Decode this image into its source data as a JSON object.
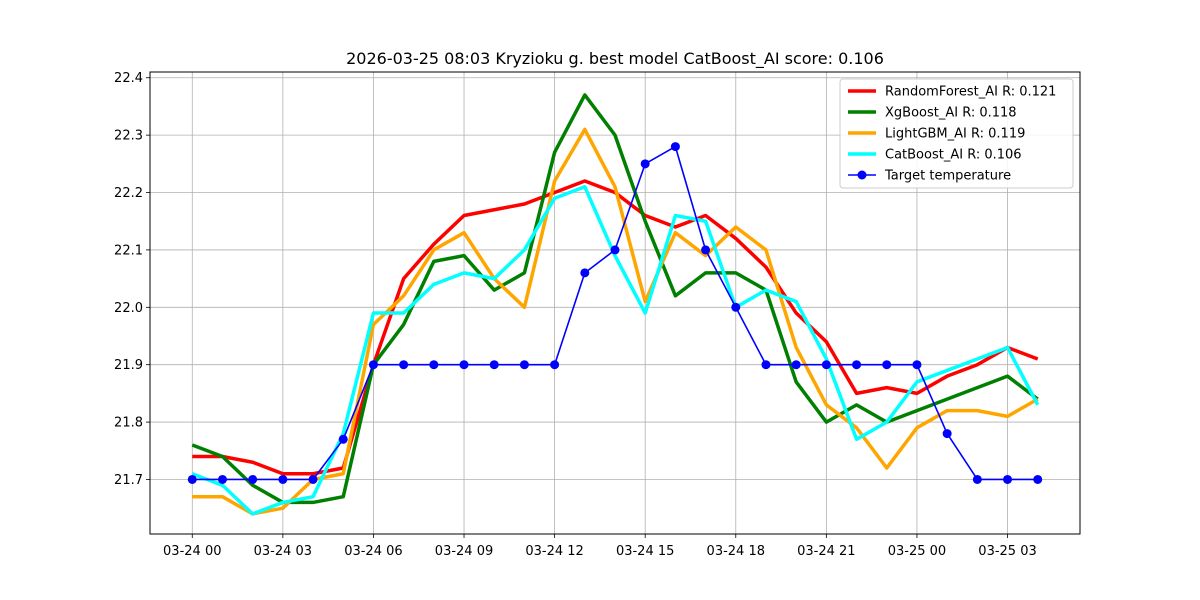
{
  "chart_data": {
    "type": "line",
    "title": "2026-03-25 08:03 Kryzioku g. best model CatBoost_AI score: 0.106",
    "xlabel": "",
    "ylabel": "",
    "x_hours": [
      0,
      1,
      2,
      3,
      4,
      5,
      6,
      7,
      8,
      9,
      10,
      11,
      12,
      13,
      14,
      15,
      16,
      17,
      18,
      19,
      20,
      21,
      22,
      23,
      24,
      25,
      26,
      27,
      28
    ],
    "x_ticks": [
      {
        "hour": 0,
        "label": "03-24 00"
      },
      {
        "hour": 3,
        "label": "03-24 03"
      },
      {
        "hour": 6,
        "label": "03-24 06"
      },
      {
        "hour": 9,
        "label": "03-24 09"
      },
      {
        "hour": 12,
        "label": "03-24 12"
      },
      {
        "hour": 15,
        "label": "03-24 15"
      },
      {
        "hour": 18,
        "label": "03-24 18"
      },
      {
        "hour": 21,
        "label": "03-24 21"
      },
      {
        "hour": 24,
        "label": "03-25 00"
      },
      {
        "hour": 27,
        "label": "03-25 03"
      }
    ],
    "xlim": [
      -1.4,
      29.4
    ],
    "ylim": [
      21.605,
      22.41
    ],
    "y_ticks": [
      "21.7",
      "21.8",
      "21.9",
      "22.0",
      "22.1",
      "22.2",
      "22.3",
      "22.4"
    ],
    "grid": true,
    "legend_position": "top-right",
    "series": [
      {
        "name": "RandomForest_AI R: 0.121",
        "color": "#ff0000",
        "width": 3.5,
        "marker": false,
        "values": [
          21.74,
          21.74,
          21.73,
          21.71,
          21.71,
          21.72,
          21.9,
          22.05,
          22.11,
          22.16,
          22.17,
          22.18,
          22.2,
          22.22,
          22.2,
          22.16,
          22.14,
          22.16,
          22.12,
          22.07,
          21.99,
          21.94,
          21.85,
          21.86,
          21.85,
          21.88,
          21.9,
          21.93,
          21.91
        ]
      },
      {
        "name": "XgBoost_AI R: 0.118",
        "color": "#008000",
        "width": 3.5,
        "marker": false,
        "values": [
          21.76,
          21.74,
          21.69,
          21.66,
          21.66,
          21.67,
          21.9,
          21.97,
          22.08,
          22.09,
          22.03,
          22.06,
          22.27,
          22.37,
          22.3,
          22.15,
          22.02,
          22.06,
          22.06,
          22.03,
          21.87,
          21.8,
          21.83,
          21.8,
          21.82,
          21.84,
          21.86,
          21.88,
          21.84
        ]
      },
      {
        "name": "LightGBM_AI R: 0.119",
        "color": "#ffa500",
        "width": 3.5,
        "marker": false,
        "values": [
          21.67,
          21.67,
          21.64,
          21.65,
          21.7,
          21.71,
          21.97,
          22.02,
          22.1,
          22.13,
          22.05,
          22.0,
          22.22,
          22.31,
          22.21,
          22.01,
          22.13,
          22.09,
          22.14,
          22.1,
          21.93,
          21.83,
          21.79,
          21.72,
          21.79,
          21.82,
          21.82,
          21.81,
          21.84
        ]
      },
      {
        "name": "CatBoost_AI R: 0.106",
        "color": "#00ffff",
        "width": 3.5,
        "marker": false,
        "values": [
          21.71,
          21.69,
          21.64,
          21.66,
          21.67,
          21.78,
          21.99,
          21.99,
          22.04,
          22.06,
          22.05,
          22.1,
          22.19,
          22.21,
          22.09,
          21.99,
          22.16,
          22.15,
          22.0,
          22.03,
          22.01,
          21.91,
          21.77,
          21.8,
          21.87,
          21.89,
          21.91,
          21.93,
          21.83
        ]
      },
      {
        "name": "Target temperature",
        "color": "#0000ff",
        "width": 1.6,
        "marker": true,
        "values": [
          21.7,
          21.7,
          21.7,
          21.7,
          21.7,
          21.77,
          21.9,
          21.9,
          21.9,
          21.9,
          21.9,
          21.9,
          21.9,
          22.06,
          22.1,
          22.25,
          22.28,
          22.1,
          22.0,
          21.9,
          21.9,
          21.9,
          21.9,
          21.9,
          21.9,
          21.78,
          21.7,
          21.7,
          21.7
        ]
      }
    ]
  }
}
